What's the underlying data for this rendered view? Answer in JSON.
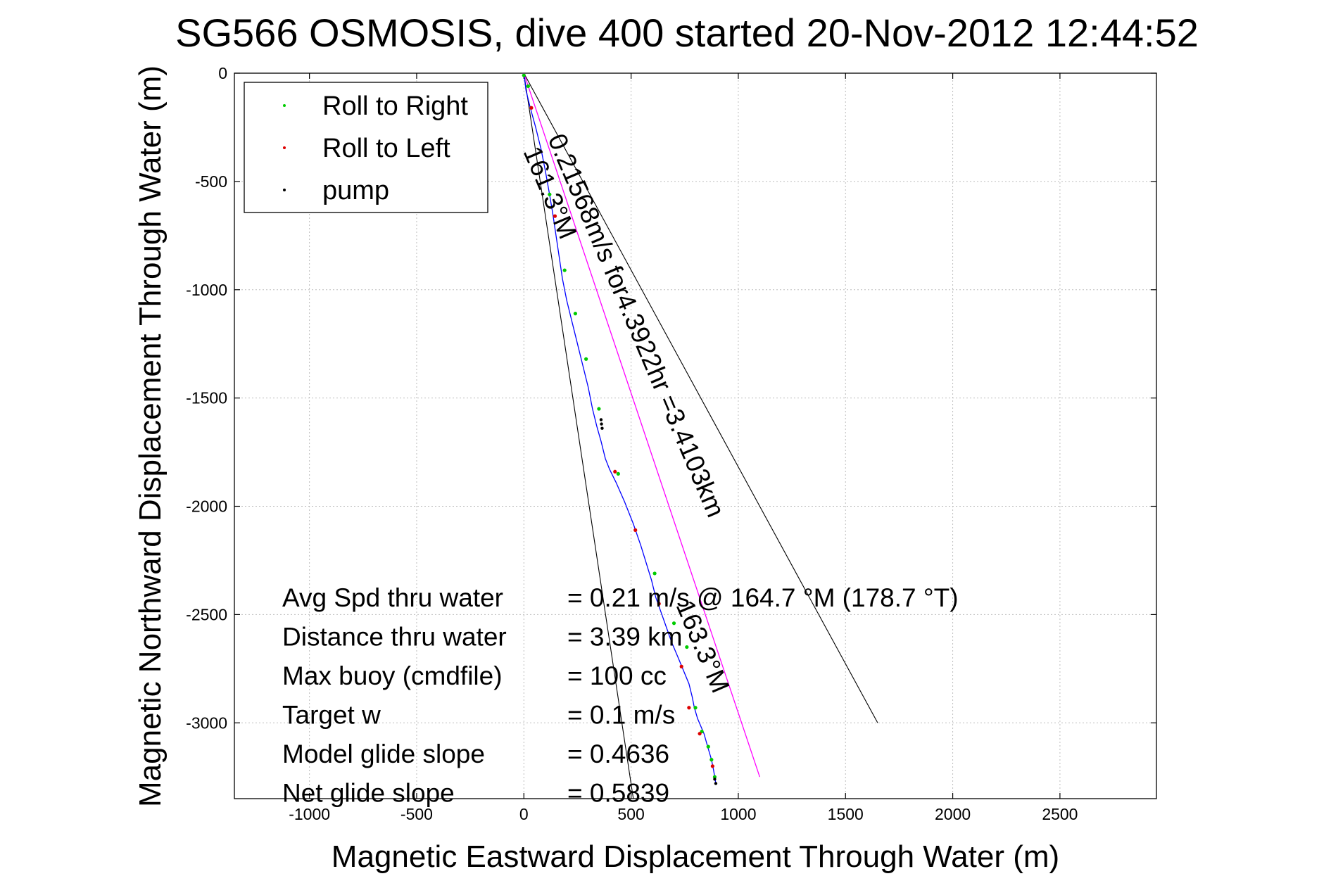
{
  "chart_data": {
    "type": "line",
    "title": "SG566 OSMOSIS, dive 400 started 20-Nov-2012 12:44:52",
    "xlabel": "Magnetic Eastward Displacement Through Water (m)",
    "ylabel": "Magnetic Northward Displacement Through Water (m)",
    "xlim": [
      -1350,
      2950
    ],
    "ylim": [
      -3350,
      0
    ],
    "xticks": [
      -1000,
      -500,
      0,
      500,
      1000,
      1500,
      2000,
      2500
    ],
    "yticks": [
      0,
      -500,
      -1000,
      -1500,
      -2000,
      -2500,
      -3000
    ],
    "grid": true,
    "legend_position": "top-left",
    "legend": [
      {
        "label": "Roll to Right",
        "color": "#00cc00"
      },
      {
        "label": "Roll to Left",
        "color": "#dd0000"
      },
      {
        "label": "pump",
        "color": "#000000"
      }
    ],
    "series": [
      {
        "name": "track",
        "color": "#0000ff",
        "x": [
          0,
          10,
          30,
          55,
          80,
          100,
          118,
          135,
          150,
          165,
          180,
          200,
          225,
          250,
          275,
          300,
          320,
          340,
          360,
          380,
          400,
          430,
          470,
          510,
          545,
          570,
          595,
          615,
          640,
          665,
          690,
          720,
          745,
          770,
          785,
          795,
          810,
          840,
          860,
          875,
          885,
          895
        ],
        "y": [
          0,
          -80,
          -160,
          -250,
          -350,
          -450,
          -550,
          -650,
          -750,
          -850,
          -950,
          -1050,
          -1150,
          -1250,
          -1350,
          -1450,
          -1550,
          -1630,
          -1700,
          -1780,
          -1830,
          -1890,
          -1980,
          -2080,
          -2180,
          -2260,
          -2340,
          -2420,
          -2490,
          -2560,
          -2630,
          -2700,
          -2760,
          -2820,
          -2880,
          -2930,
          -2980,
          -3050,
          -3120,
          -3170,
          -3220,
          -3280
        ]
      },
      {
        "name": "",
        "color": "#ff00ff",
        "x": [
          0,
          1100
        ],
        "y": [
          0,
          -3250
        ]
      }
    ],
    "roll_right_points": {
      "x": [
        0,
        20,
        120,
        190,
        240,
        290,
        350,
        440,
        610,
        700,
        760,
        800,
        830,
        860,
        875,
        890
      ],
      "y": [
        -10,
        -60,
        -560,
        -910,
        -1110,
        -1320,
        -1550,
        -1850,
        -2310,
        -2540,
        -2650,
        -2930,
        -3040,
        -3110,
        -3170,
        -3250
      ]
    },
    "roll_left_points": {
      "x": [
        35,
        145,
        425,
        520,
        630,
        735,
        770,
        820,
        880
      ],
      "y": [
        -160,
        -660,
        -1840,
        -2110,
        -2450,
        -2740,
        -2930,
        -3050,
        -3200
      ]
    },
    "pump_points": {
      "x": [
        360,
        362,
        365,
        890,
        895
      ],
      "y": [
        -1600,
        -1620,
        -1640,
        -3260,
        -3280
      ]
    },
    "cone_lines": [
      {
        "x": [
          0,
          515
        ],
        "y": [
          0,
          -3380
        ]
      },
      {
        "x": [
          0,
          1650
        ],
        "y": [
          0,
          -3000
        ]
      }
    ],
    "line_labels": [
      "0.21568m/s for4.3922hr =3.4103km",
      "161.3°M",
      "163.3°M"
    ],
    "stats": [
      {
        "name": "Avg Spd thru water",
        "value": "=  0.21 m/s @ 164.7 °M (178.7 °T)"
      },
      {
        "name": "Distance thru water",
        "value": "=  3.39 km"
      },
      {
        "name": "Max buoy (cmdfile)",
        "value": "= 100 cc"
      },
      {
        "name": "Target w",
        "value": "= 0.1 m/s"
      },
      {
        "name": "Model glide slope",
        "value": "= 0.4636"
      },
      {
        "name": "Net glide slope",
        "value": "= 0.5839"
      }
    ]
  }
}
